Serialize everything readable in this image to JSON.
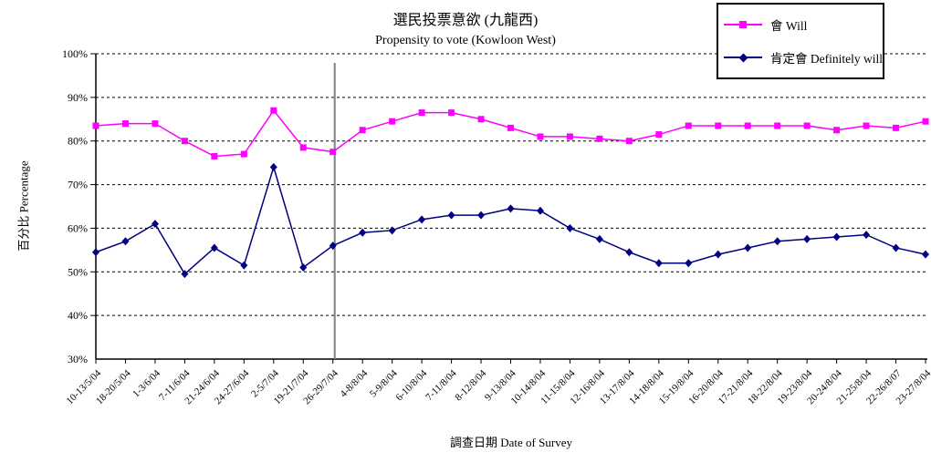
{
  "chart_data": {
    "type": "line",
    "title": "選民投票意欲 (九龍西)",
    "subtitle": "Propensity to vote (Kowloon West)",
    "xlabel": "調查日期 Date of Survey",
    "ylabel": "百分比 Percentage",
    "ylim": [
      30,
      100
    ],
    "grid": "horizontal-dashed",
    "legend_position": "top-right",
    "y_ticks": [
      {
        "v": 100,
        "label": "100%"
      },
      {
        "v": 90,
        "label": "90%"
      },
      {
        "v": 80,
        "label": "80%"
      },
      {
        "v": 70,
        "label": "70%"
      },
      {
        "v": 60,
        "label": "60%"
      },
      {
        "v": 50,
        "label": "50%"
      },
      {
        "v": 40,
        "label": "40%"
      },
      {
        "v": 30,
        "label": "30%"
      }
    ],
    "categories": [
      "10-13/5/04",
      "18-20/5/04",
      "1-3/6/04",
      "7-11/6/04",
      "21-24/6/04",
      "24-27/6/04",
      "2-5/7/04",
      "19-21/7/04",
      "26-29/7/04",
      "4-8/8/04",
      "5-9/8/04",
      "6-10/8/04",
      "7-11/8/04",
      "8-12/8/04",
      "9-13/8/04",
      "10-14/8/04",
      "11-15/8/04",
      "12-16/8/04",
      "13-17/8/04",
      "14-18/8/04",
      "15-19/8/04",
      "16-20/8/04",
      "17-21/8/04",
      "18-22/8/04",
      "19-23/8/04",
      "20-24/8/04",
      "21-25/8/04",
      "22-26/8/07",
      "23-27/8/04"
    ],
    "series": [
      {
        "name": "會 Will",
        "color": "#FF00FF",
        "marker": "square",
        "values": [
          83.5,
          84,
          84,
          80,
          76.5,
          77,
          87,
          78.5,
          77.5,
          82.5,
          84.5,
          86.5,
          86.5,
          85,
          83,
          81,
          81,
          80.5,
          80,
          81.5,
          83.5,
          83.5,
          83.5,
          83.5,
          83.5,
          82.5,
          83.5,
          83,
          84.5
        ]
      },
      {
        "name": "肯定會 Definitely will",
        "color": "#000080",
        "marker": "diamond",
        "values": [
          54.5,
          57,
          61,
          49.5,
          55.5,
          51.5,
          74,
          51,
          56,
          59,
          59.5,
          62,
          63,
          63,
          64.5,
          64,
          60,
          57.5,
          54.5,
          52,
          52,
          54,
          55.5,
          57,
          57.5,
          58,
          58.5,
          55.5,
          54
        ]
      }
    ],
    "vertical_separator": {
      "at_category_index": 8,
      "color": "#808080"
    }
  }
}
